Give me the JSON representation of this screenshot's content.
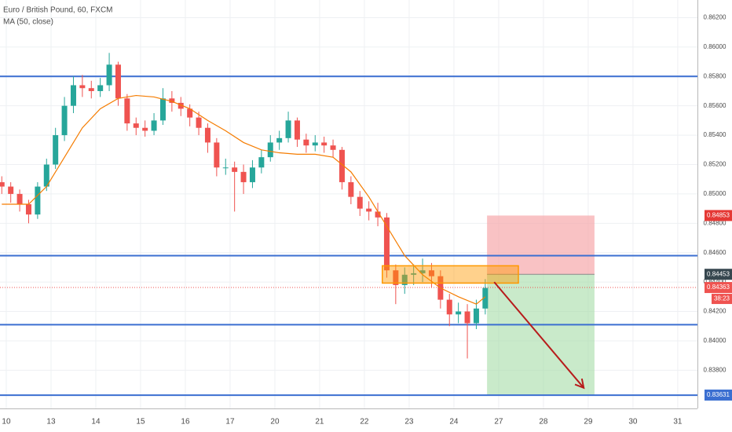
{
  "chart_data": {
    "type": "candlestick",
    "title": "Euro / British Pound, 60, FXCM",
    "subtitle": "MA (50, close)",
    "up_color": "#26a69a",
    "down_color": "#ef5350",
    "x": [
      -0.1,
      0.1,
      0.3,
      0.5,
      0.7,
      0.9,
      1.1,
      1.3,
      1.5,
      1.7,
      1.9,
      2.1,
      2.3,
      2.5,
      2.7,
      2.9,
      3.1,
      3.3,
      3.5,
      3.7,
      3.9,
      4.1,
      4.3,
      4.5,
      4.7,
      4.9,
      5.1,
      5.3,
      5.5,
      5.7,
      5.9,
      6.1,
      6.3,
      6.5,
      6.7,
      6.9,
      7.1,
      7.3,
      7.5,
      7.7,
      7.9,
      8.1,
      8.3,
      8.5,
      8.7,
      8.9,
      9.1,
      9.3,
      9.5,
      9.7,
      9.9,
      10.1,
      10.3,
      10.5,
      10.7
    ],
    "open": [
      0.8508,
      0.8505,
      0.85,
      0.8493,
      0.8486,
      0.8505,
      0.852,
      0.854,
      0.856,
      0.8574,
      0.8572,
      0.857,
      0.8574,
      0.8588,
      0.8565,
      0.8548,
      0.8545,
      0.8543,
      0.855,
      0.8565,
      0.8562,
      0.8558,
      0.8552,
      0.8545,
      0.8535,
      0.8518,
      0.8518,
      0.8515,
      0.8508,
      0.8518,
      0.8525,
      0.8535,
      0.8538,
      0.855,
      0.8537,
      0.8533,
      0.8535,
      0.8533,
      0.853,
      0.8508,
      0.8498,
      0.849,
      0.8488,
      0.8484,
      0.8448,
      0.8438,
      0.8445,
      0.8446,
      0.8448,
      0.8444,
      0.8428,
      0.8418,
      0.842,
      0.8412,
      0.8422
    ],
    "high": [
      0.8512,
      0.8508,
      0.8503,
      0.8496,
      0.8508,
      0.8524,
      0.8545,
      0.8566,
      0.858,
      0.8581,
      0.8577,
      0.8579,
      0.8596,
      0.859,
      0.8568,
      0.8552,
      0.855,
      0.8555,
      0.8572,
      0.857,
      0.8566,
      0.8561,
      0.8556,
      0.8548,
      0.8538,
      0.8524,
      0.8522,
      0.852,
      0.8523,
      0.853,
      0.854,
      0.8543,
      0.8556,
      0.8552,
      0.8541,
      0.854,
      0.8539,
      0.8537,
      0.8532,
      0.8512,
      0.8502,
      0.8495,
      0.8494,
      0.8487,
      0.8452,
      0.845,
      0.8452,
      0.8456,
      0.8453,
      0.8448,
      0.8432,
      0.8426,
      0.8425,
      0.8428,
      0.8442
    ],
    "low": [
      0.85,
      0.8494,
      0.8488,
      0.848,
      0.8483,
      0.8502,
      0.8517,
      0.8536,
      0.8555,
      0.8566,
      0.8565,
      0.8566,
      0.857,
      0.856,
      0.8543,
      0.854,
      0.8539,
      0.854,
      0.8547,
      0.8556,
      0.8553,
      0.8546,
      0.854,
      0.8528,
      0.8512,
      0.8513,
      0.8488,
      0.85,
      0.8504,
      0.8514,
      0.8522,
      0.853,
      0.8535,
      0.8532,
      0.8528,
      0.8529,
      0.8528,
      0.8525,
      0.8503,
      0.8493,
      0.8485,
      0.8482,
      0.8478,
      0.8443,
      0.8425,
      0.8432,
      0.8438,
      0.844,
      0.8436,
      0.8422,
      0.841,
      0.8412,
      0.8388,
      0.8408,
      0.8418
    ],
    "close": [
      0.8505,
      0.85,
      0.8493,
      0.8486,
      0.8505,
      0.852,
      0.854,
      0.856,
      0.8574,
      0.8572,
      0.857,
      0.8574,
      0.8588,
      0.8565,
      0.8548,
      0.8545,
      0.8543,
      0.855,
      0.8565,
      0.8562,
      0.8558,
      0.8552,
      0.8545,
      0.8535,
      0.8518,
      0.8518,
      0.8515,
      0.8508,
      0.8518,
      0.8525,
      0.8535,
      0.8538,
      0.855,
      0.8537,
      0.8533,
      0.8535,
      0.8533,
      0.853,
      0.8508,
      0.8498,
      0.849,
      0.8488,
      0.8484,
      0.8448,
      0.8438,
      0.8445,
      0.8446,
      0.8448,
      0.8444,
      0.8428,
      0.8418,
      0.842,
      0.8412,
      0.8422,
      0.8436
    ],
    "ma": {
      "color": "#f57c00",
      "x": [
        -0.1,
        0.5,
        0.9,
        1.3,
        1.7,
        2.1,
        2.5,
        2.9,
        3.3,
        3.7,
        4.1,
        4.5,
        4.9,
        5.3,
        5.7,
        6.1,
        6.5,
        6.9,
        7.3,
        7.7,
        8.1,
        8.5,
        8.9,
        9.3,
        9.7,
        10.1,
        10.5,
        10.7
      ],
      "values": [
        0.8493,
        0.8493,
        0.8505,
        0.8525,
        0.8545,
        0.8558,
        0.8565,
        0.8567,
        0.8566,
        0.8563,
        0.8558,
        0.855,
        0.8543,
        0.8535,
        0.853,
        0.8528,
        0.8527,
        0.8527,
        0.8525,
        0.8515,
        0.8498,
        0.8478,
        0.8458,
        0.8445,
        0.8436,
        0.843,
        0.8425,
        0.843
      ]
    },
    "levels": [
      0.858,
      0.8458,
      0.8411,
      0.8363
    ],
    "level_color": "#3b6fd1",
    "current_price": 0.84363,
    "box": {
      "x": [
        8.4,
        11.44
      ],
      "y": [
        0.84393,
        0.84511
      ],
      "color": "#ff9800"
    },
    "risk_zone": {
      "x": [
        10.74,
        13.14
      ],
      "y": [
        0.84453,
        0.84853
      ],
      "color": "#f7a8ab"
    },
    "reward_zone": {
      "x": [
        10.74,
        13.14
      ],
      "y": [
        0.83631,
        0.84453
      ],
      "color": "#a5dca6"
    },
    "arrow": {
      "x": [
        10.9,
        12.9
      ],
      "y": [
        0.844,
        0.8368
      ],
      "color": "#b71c1c"
    },
    "price_labels": [
      {
        "value": 0.84853,
        "label": "0.84853",
        "color": "#e53935"
      },
      {
        "value": 0.84453,
        "label": "0.84453",
        "color": "#37474f"
      },
      {
        "value": 0.84363,
        "label": "0.84363",
        "color": "#ef5350"
      },
      {
        "value": 0.83631,
        "label": "0.83631",
        "color": "#3b6fd1"
      }
    ],
    "timer": "38:23",
    "xlim": [
      -0.14,
      15.44
    ],
    "ylim": [
      0.8354,
      0.8632
    ],
    "xticks": [
      {
        "value": 0,
        "label": "10"
      },
      {
        "value": 1,
        "label": "13"
      },
      {
        "value": 2,
        "label": "14"
      },
      {
        "value": 3,
        "label": "15"
      },
      {
        "value": 4,
        "label": "16"
      },
      {
        "value": 5,
        "label": "17"
      },
      {
        "value": 6,
        "label": "20"
      },
      {
        "value": 7,
        "label": "21"
      },
      {
        "value": 8,
        "label": "22"
      },
      {
        "value": 9,
        "label": "23"
      },
      {
        "value": 10,
        "label": "24"
      },
      {
        "value": 11,
        "label": "27"
      },
      {
        "value": 12,
        "label": "28"
      },
      {
        "value": 13,
        "label": "29"
      },
      {
        "value": 14,
        "label": "30"
      },
      {
        "value": 15,
        "label": "31"
      }
    ],
    "yticks": [
      {
        "value": 0.862,
        "label": "0.86200"
      },
      {
        "value": 0.86,
        "label": "0.86000"
      },
      {
        "value": 0.858,
        "label": "0.85800"
      },
      {
        "value": 0.856,
        "label": "0.85600"
      },
      {
        "value": 0.854,
        "label": "0.85400"
      },
      {
        "value": 0.852,
        "label": "0.85200"
      },
      {
        "value": 0.85,
        "label": "0.85000"
      },
      {
        "value": 0.848,
        "label": "0.84800"
      },
      {
        "value": 0.846,
        "label": "0.84600"
      },
      {
        "value": 0.844,
        "label": "0.84400"
      },
      {
        "value": 0.842,
        "label": "0.84200"
      },
      {
        "value": 0.84,
        "label": "0.84000"
      },
      {
        "value": 0.838,
        "label": "0.83800"
      }
    ],
    "grid": true
  }
}
